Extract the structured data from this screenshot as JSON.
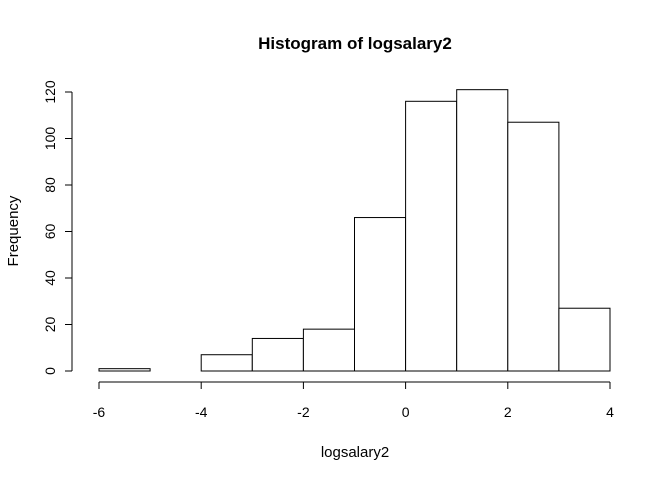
{
  "chart_data": {
    "type": "histogram",
    "title": "Histogram of logsalary2",
    "xlabel": "logsalary2",
    "ylabel": "Frequency",
    "bin_edges": [
      -6,
      -5,
      -4,
      -3,
      -2,
      -1,
      0,
      1,
      2,
      3,
      4
    ],
    "counts": [
      1,
      0,
      7,
      14,
      18,
      66,
      116,
      121,
      107,
      27
    ],
    "xlim": [
      -6,
      4
    ],
    "ylim": [
      0,
      120
    ],
    "x_ticks": [
      -6,
      -4,
      -2,
      0,
      2,
      4
    ],
    "y_ticks": [
      0,
      20,
      40,
      60,
      80,
      100,
      120
    ],
    "x_tick_labels": [
      "-6",
      "-4",
      "-2",
      "0",
      "2",
      "4"
    ],
    "y_tick_labels": [
      "0",
      "20",
      "40",
      "60",
      "80",
      "100",
      "120"
    ],
    "grid": false,
    "bar_fill": "#ffffff",
    "bar_stroke": "#000000"
  }
}
